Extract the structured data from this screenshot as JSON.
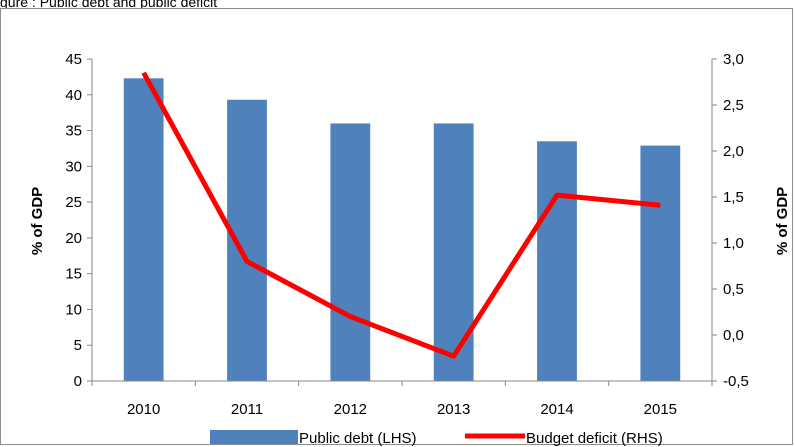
{
  "caption": "gure : Public debt and public deficit",
  "chart_data": {
    "type": "bar",
    "categories": [
      "2010",
      "2011",
      "2012",
      "2013",
      "2014",
      "2015"
    ],
    "series": [
      {
        "name": "Public debt (LHS)",
        "type": "bar",
        "axis": "left",
        "color": "#4F81BD",
        "values": [
          42.3,
          39.3,
          36.0,
          36.0,
          33.5,
          32.9
        ]
      },
      {
        "name": "Budget deficit (RHS)",
        "type": "line",
        "axis": "right",
        "color": "#FF0000",
        "values": [
          2.85,
          0.8,
          0.2,
          -0.23,
          1.52,
          1.41
        ]
      }
    ],
    "y_left": {
      "label": "% of GDP",
      "min": 0,
      "max": 45,
      "step": 5,
      "ticks": [
        "0",
        "5",
        "10",
        "15",
        "20",
        "25",
        "30",
        "35",
        "40",
        "45"
      ]
    },
    "y_right": {
      "label": "% of GDP",
      "min": -0.5,
      "max": 3.0,
      "step": 0.5,
      "ticks": [
        "-0,5",
        "0,0",
        "0,5",
        "1,0",
        "1,5",
        "2,0",
        "2,5",
        "3,0"
      ]
    },
    "legend_position": "bottom",
    "grid": false
  }
}
